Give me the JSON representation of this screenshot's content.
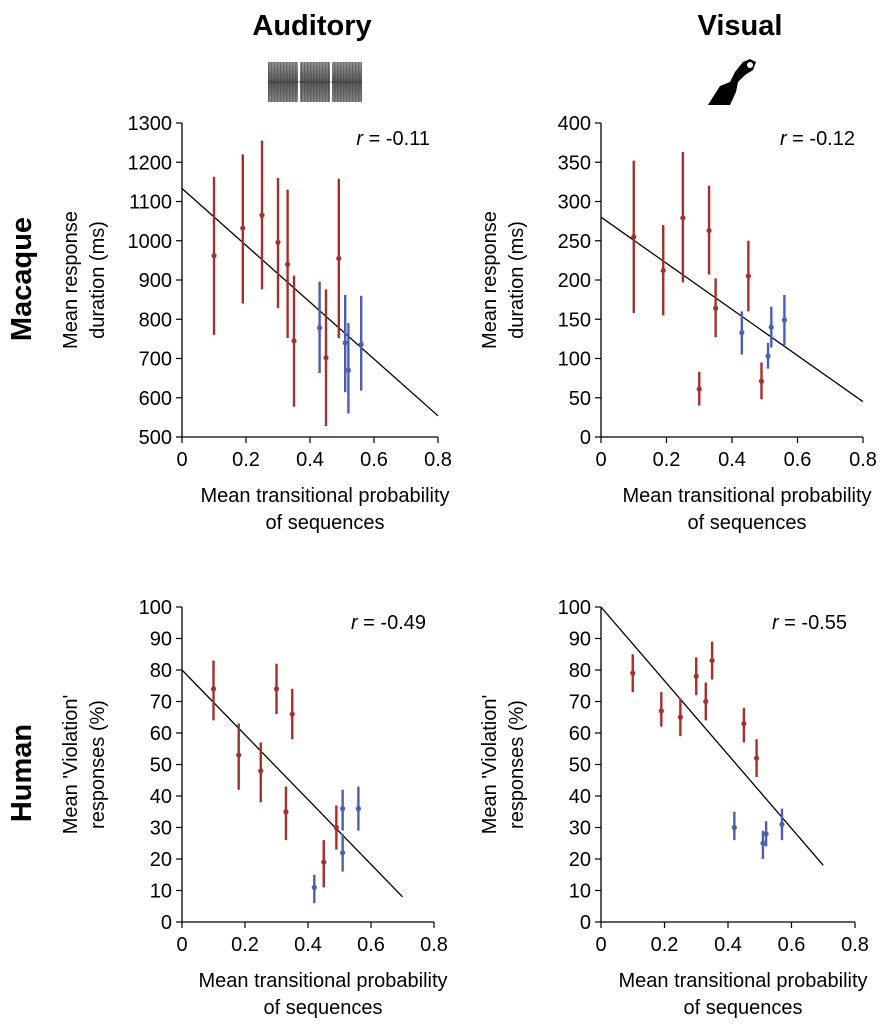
{
  "columns": {
    "auditory": "Auditory",
    "visual": "Visual"
  },
  "rows": {
    "macaque": "Macaque",
    "human": "Human"
  },
  "colors": {
    "red_series": "#a3302d",
    "blue_series": "#4a5fb0",
    "fit_line": "#000000"
  },
  "chart_data": [
    {
      "id": "macaque-auditory",
      "type": "scatter",
      "xlabel": [
        "Mean transitional probability",
        "of sequences"
      ],
      "ylabel": [
        "Mean response",
        "duration (ms)"
      ],
      "xlim": [
        0,
        0.8
      ],
      "ylim": [
        500,
        1300
      ],
      "xticks": [
        0,
        0.2,
        0.4,
        0.6,
        0.8
      ],
      "xticklabels": [
        "0",
        "0.2",
        "0.4",
        "0.6",
        "0.8"
      ],
      "yticks": [
        500,
        600,
        700,
        800,
        900,
        1000,
        1100,
        1200,
        1300
      ],
      "yticklabels": [
        "500",
        "600",
        "700",
        "800",
        "900",
        "1000",
        "1100",
        "1200",
        "1300"
      ],
      "annotation": "r = -0.11",
      "fit_line": {
        "x": [
          0,
          0.8
        ],
        "y": [
          1133,
          554
        ]
      },
      "series": [
        {
          "color": "red",
          "points": [
            {
              "x": 0.1,
              "y": 962,
              "low": 760,
              "high": 1163
            },
            {
              "x": 0.19,
              "y": 1032,
              "low": 840,
              "high": 1220
            },
            {
              "x": 0.25,
              "y": 1065,
              "low": 876,
              "high": 1255
            },
            {
              "x": 0.3,
              "y": 996,
              "low": 828,
              "high": 1160
            },
            {
              "x": 0.33,
              "y": 940,
              "low": 752,
              "high": 1130
            },
            {
              "x": 0.35,
              "y": 745,
              "low": 577,
              "high": 911
            },
            {
              "x": 0.45,
              "y": 702,
              "low": 528,
              "high": 876
            },
            {
              "x": 0.49,
              "y": 955,
              "low": 752,
              "high": 1158
            }
          ]
        },
        {
          "color": "blue",
          "points": [
            {
              "x": 0.43,
              "y": 778,
              "low": 663,
              "high": 896
            },
            {
              "x": 0.51,
              "y": 740,
              "low": 614,
              "high": 862
            },
            {
              "x": 0.52,
              "y": 670,
              "low": 560,
              "high": 790
            },
            {
              "x": 0.56,
              "y": 736,
              "low": 618,
              "high": 860
            }
          ]
        }
      ]
    },
    {
      "id": "macaque-visual",
      "type": "scatter",
      "xlabel": [
        "Mean transitional probability",
        "of sequences"
      ],
      "ylabel": [
        "Mean response",
        "duration (ms)"
      ],
      "xlim": [
        0,
        0.8
      ],
      "ylim": [
        0,
        400
      ],
      "xticks": [
        0,
        0.2,
        0.4,
        0.6,
        0.8
      ],
      "xticklabels": [
        "0",
        "0.2",
        "0.4",
        "0.6",
        "0.8"
      ],
      "yticks": [
        0,
        50,
        100,
        150,
        200,
        250,
        300,
        350,
        400
      ],
      "yticklabels": [
        "0",
        "50",
        "100",
        "150",
        "200",
        "250",
        "300",
        "350",
        "400"
      ],
      "annotation": "r = -0.12",
      "fit_line": {
        "x": [
          0,
          0.8
        ],
        "y": [
          280,
          45
        ]
      },
      "series": [
        {
          "color": "red",
          "points": [
            {
              "x": 0.1,
              "y": 255,
              "low": 158,
              "high": 352
            },
            {
              "x": 0.19,
              "y": 212,
              "low": 155,
              "high": 270
            },
            {
              "x": 0.25,
              "y": 279,
              "low": 197,
              "high": 363
            },
            {
              "x": 0.3,
              "y": 61,
              "low": 40,
              "high": 83
            },
            {
              "x": 0.33,
              "y": 263,
              "low": 207,
              "high": 320
            },
            {
              "x": 0.35,
              "y": 164,
              "low": 127,
              "high": 202
            },
            {
              "x": 0.45,
              "y": 205,
              "low": 160,
              "high": 250
            },
            {
              "x": 0.49,
              "y": 71,
              "low": 48,
              "high": 95
            }
          ]
        },
        {
          "color": "blue",
          "points": [
            {
              "x": 0.43,
              "y": 133,
              "low": 105,
              "high": 160
            },
            {
              "x": 0.51,
              "y": 103,
              "low": 87,
              "high": 120
            },
            {
              "x": 0.52,
              "y": 140,
              "low": 114,
              "high": 166
            },
            {
              "x": 0.56,
              "y": 149,
              "low": 117,
              "high": 181
            }
          ]
        }
      ]
    },
    {
      "id": "human-auditory",
      "type": "scatter",
      "xlabel": [
        "Mean transitional probability",
        "of sequences"
      ],
      "ylabel": [
        "Mean 'Violation'",
        "responses (%)"
      ],
      "xlim": [
        0,
        0.8
      ],
      "ylim": [
        0,
        100
      ],
      "xticks": [
        0,
        0.2,
        0.4,
        0.6,
        0.8
      ],
      "xticklabels": [
        "0",
        "0.2",
        "0.4",
        "0.6",
        "0.8"
      ],
      "yticks": [
        0,
        10,
        20,
        30,
        40,
        50,
        60,
        70,
        80,
        90,
        100
      ],
      "yticklabels": [
        "0",
        "10",
        "20",
        "30",
        "40",
        "50",
        "60",
        "70",
        "80",
        "90",
        "100"
      ],
      "annotation": "r = -0.49",
      "fit_line": {
        "x": [
          0,
          0.7
        ],
        "y": [
          80,
          8
        ]
      },
      "series": [
        {
          "color": "red",
          "points": [
            {
              "x": 0.1,
              "y": 74,
              "low": 64,
              "high": 83
            },
            {
              "x": 0.18,
              "y": 53,
              "low": 42,
              "high": 63
            },
            {
              "x": 0.25,
              "y": 48,
              "low": 38,
              "high": 57
            },
            {
              "x": 0.3,
              "y": 74,
              "low": 66,
              "high": 82
            },
            {
              "x": 0.33,
              "y": 35,
              "low": 26,
              "high": 43
            },
            {
              "x": 0.35,
              "y": 66,
              "low": 58,
              "high": 74
            },
            {
              "x": 0.45,
              "y": 19,
              "low": 11,
              "high": 26
            },
            {
              "x": 0.49,
              "y": 30,
              "low": 23,
              "high": 37
            }
          ]
        },
        {
          "color": "blue",
          "points": [
            {
              "x": 0.42,
              "y": 11,
              "low": 6,
              "high": 15
            },
            {
              "x": 0.51,
              "y": 22,
              "low": 16,
              "high": 28
            },
            {
              "x": 0.51,
              "y": 36,
              "low": 29,
              "high": 42
            },
            {
              "x": 0.56,
              "y": 36,
              "low": 29,
              "high": 43
            }
          ]
        }
      ]
    },
    {
      "id": "human-visual",
      "type": "scatter",
      "xlabel": [
        "Mean transitional probability",
        "of sequences"
      ],
      "ylabel": [
        "Mean 'Violation'",
        "responses (%)"
      ],
      "xlim": [
        0,
        0.8
      ],
      "ylim": [
        0,
        100
      ],
      "xticks": [
        0,
        0.2,
        0.4,
        0.6,
        0.8
      ],
      "xticklabels": [
        "0",
        "0.2",
        "0.4",
        "0.6",
        "0.8"
      ],
      "yticks": [
        0,
        10,
        20,
        30,
        40,
        50,
        60,
        70,
        80,
        90,
        100
      ],
      "yticklabels": [
        "0",
        "10",
        "20",
        "30",
        "40",
        "50",
        "60",
        "70",
        "80",
        "90",
        "100"
      ],
      "annotation": "r = -0.55",
      "fit_line": {
        "x": [
          0,
          0.7
        ],
        "y": [
          100,
          18
        ]
      },
      "series": [
        {
          "color": "red",
          "points": [
            {
              "x": 0.1,
              "y": 79,
              "low": 73,
              "high": 85
            },
            {
              "x": 0.19,
              "y": 67,
              "low": 62,
              "high": 73
            },
            {
              "x": 0.25,
              "y": 65,
              "low": 59,
              "high": 71
            },
            {
              "x": 0.3,
              "y": 78,
              "low": 72,
              "high": 84
            },
            {
              "x": 0.33,
              "y": 70,
              "low": 64,
              "high": 76
            },
            {
              "x": 0.35,
              "y": 83,
              "low": 77,
              "high": 89
            },
            {
              "x": 0.45,
              "y": 63,
              "low": 57,
              "high": 68
            },
            {
              "x": 0.49,
              "y": 52,
              "low": 46,
              "high": 58
            }
          ]
        },
        {
          "color": "blue",
          "points": [
            {
              "x": 0.42,
              "y": 30,
              "low": 26,
              "high": 35
            },
            {
              "x": 0.51,
              "y": 25,
              "low": 20,
              "high": 29
            },
            {
              "x": 0.52,
              "y": 28,
              "low": 24,
              "high": 32
            },
            {
              "x": 0.57,
              "y": 31,
              "low": 26,
              "high": 36
            }
          ]
        }
      ]
    }
  ]
}
